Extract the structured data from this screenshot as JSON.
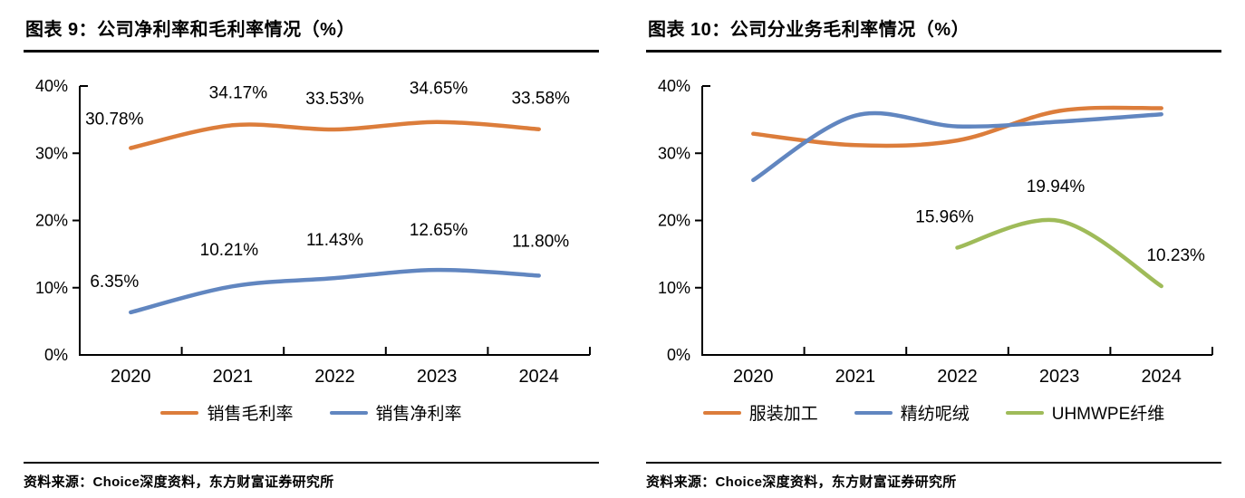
{
  "panels": [
    {
      "title": "图表 9：公司净利率和毛利率情况（%）",
      "source": "资料来源：Choice深度资料，东方财富证券研究所"
    },
    {
      "title": "图表 10：公司分业务毛利率情况（%）",
      "source": "资料来源：Choice深度资料，东方财富证券研究所"
    }
  ],
  "chart_data": [
    {
      "type": "line",
      "title": "图表 9：公司净利率和毛利率情况（%）",
      "categories": [
        "2020",
        "2021",
        "2022",
        "2023",
        "2024"
      ],
      "series": [
        {
          "name": "销售毛利率",
          "color": "#DC7D3B",
          "values": [
            30.78,
            34.17,
            33.53,
            34.65,
            33.58
          ],
          "labels": [
            "30.78%",
            "34.17%",
            "33.53%",
            "34.65%",
            "33.58%"
          ],
          "label_dx": [
            -18,
            6,
            0,
            2,
            2
          ],
          "label_dy": [
            -26,
            -30,
            -28,
            -31,
            -28
          ]
        },
        {
          "name": "销售净利率",
          "color": "#6186C0",
          "values": [
            6.35,
            10.21,
            11.43,
            12.65,
            11.8
          ],
          "labels": [
            "6.35%",
            "10.21%",
            "11.43%",
            "12.65%",
            "11.80%"
          ],
          "label_dx": [
            -18,
            -4,
            0,
            2,
            2
          ],
          "label_dy": [
            -28,
            -34,
            -36,
            -38,
            -32
          ]
        }
      ],
      "xlabel": "",
      "ylabel": "",
      "ylim": [
        0,
        40
      ],
      "ytick_step": 10,
      "ytick_labels": [
        "0%",
        "10%",
        "20%",
        "30%",
        "40%"
      ],
      "grid": false,
      "smooth": true,
      "legend_position": "bottom"
    },
    {
      "type": "line",
      "title": "图表 10：公司分业务毛利率情况（%）",
      "categories": [
        "2020",
        "2021",
        "2022",
        "2023",
        "2024"
      ],
      "series": [
        {
          "name": "服装加工",
          "color": "#DC7D3B",
          "values": [
            32.9,
            31.2,
            31.9,
            36.3,
            36.7
          ],
          "labels": [
            null,
            null,
            null,
            null,
            null
          ],
          "label_dx": [],
          "label_dy": []
        },
        {
          "name": "精纺呢绒",
          "color": "#6186C0",
          "values": [
            26.0,
            35.6,
            34.0,
            34.7,
            35.8
          ],
          "labels": [
            null,
            null,
            null,
            null,
            null
          ],
          "label_dx": [],
          "label_dy": []
        },
        {
          "name": "UHMWPE纤维",
          "color": "#9FBB59",
          "values": [
            null,
            null,
            15.96,
            19.94,
            10.23
          ],
          "labels": [
            null,
            null,
            "15.96%",
            "19.94%",
            "10.23%"
          ],
          "label_dx": [
            0,
            0,
            -14,
            -4,
            16
          ],
          "label_dy": [
            0,
            0,
            -28,
            -32,
            -28
          ]
        }
      ],
      "xlabel": "",
      "ylabel": "",
      "ylim": [
        0,
        40
      ],
      "ytick_step": 10,
      "ytick_labels": [
        "0%",
        "10%",
        "20%",
        "30%",
        "40%"
      ],
      "grid": false,
      "smooth": true,
      "legend_position": "bottom"
    }
  ]
}
